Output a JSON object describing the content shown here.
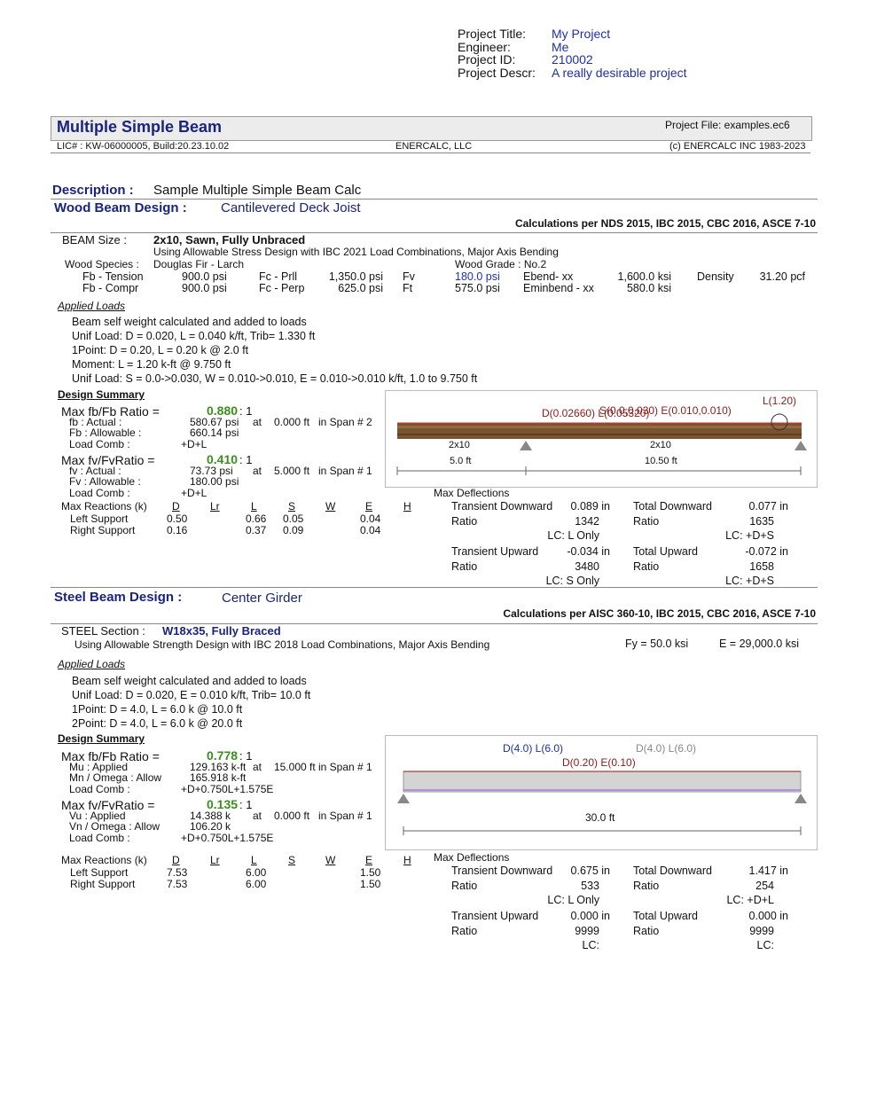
{
  "header": {
    "project_title_label": "Project Title:",
    "project_title": "My Project",
    "engineer_label": "Engineer:",
    "engineer": "Me",
    "project_id_label": "Project ID:",
    "project_id": "210002",
    "project_descr_label": "Project Descr:",
    "project_descr": "A really desirable project"
  },
  "banner": {
    "title": "Multiple Simple Beam",
    "project_file": "Project File: examples.ec6",
    "lic": "LIC# : KW-06000005, Build:20.23.10.02",
    "company": "ENERCALC, LLC",
    "copyright": "(c) ENERCALC INC 1983-2023"
  },
  "description": {
    "label": "Description :",
    "text": "Sample Multiple Simple Beam Calc"
  },
  "wood": {
    "heading_label": "Wood Beam Design :",
    "heading_name": "Cantilevered Deck Joist",
    "calcs": "Calculations per NDS 2015, IBC 2015, CBC 2016, ASCE 7-10",
    "beam_size_label": "BEAM Size :",
    "beam_size": "2x10, Sawn, Fully Unbraced",
    "method": "Using Allowable Stress Design with IBC 2021 Load Combinations, Major Axis Bending",
    "species_label": "Wood Species :",
    "species": "Douglas Fir - Larch",
    "grade": "Wood Grade : No.2",
    "props": [
      [
        "Fb - Tension",
        "900.0 psi",
        "Fc - Prll",
        "1,350.0 psi",
        "Fv",
        "180.0 psi",
        "Ebend- xx",
        "1,600.0 ksi",
        "Density",
        "31.20 pcf"
      ],
      [
        "Fb - Compr",
        "900.0 psi",
        "Fc - Perp",
        "625.0 psi",
        "Ft",
        "575.0 psi",
        "Eminbend - xx",
        "580.0 ksi"
      ]
    ],
    "applied_loads_label": "Applied Loads",
    "loads": [
      "Beam self weight calculated and added to loads",
      "Unif Load: D = 0.020, L = 0.040 k/ft, Trib= 1.330 ft",
      "1Point: D = 0.20, L = 0.20 k @ 2.0 ft",
      "Moment: L = 1.20 k-ft @ 9.750 ft",
      "Unif Load: S = 0.0->0.030, W = 0.010->0.010, E = 0.010->0.010 k/ft, 1.0 to 9.750 ft"
    ],
    "design_summary_label": "Design Summary",
    "bending": {
      "label": "Max fb/Fb Ratio =",
      "ratio": "0.880",
      "suffix": ": 1",
      "actual_label": "fb : Actual :",
      "actual": "580.67 psi",
      "at": "at",
      "location": "0.000 ft",
      "span": "in Span # 2",
      "allow_label": "Fb : Allowable :",
      "allow": "660.14 psi",
      "comb_label": "Load Comb :",
      "comb": "+D+L"
    },
    "shear": {
      "label": "Max fv/FvRatio =",
      "ratio": "0.410",
      "suffix": ": 1",
      "actual_label": "fv : Actual :",
      "actual": "73.73 psi",
      "at": "at",
      "location": "5.000 ft",
      "span": "in Span # 1",
      "allow_label": "Fv : Allowable :",
      "allow": "180.00 psi",
      "comb_label": "Load Comb :",
      "comb": "+D+L"
    },
    "reactions": {
      "label": "Max Reactions (k)",
      "headers": [
        "D",
        "Lr",
        "L",
        "S",
        "W",
        "E",
        "H"
      ],
      "rows": [
        {
          "name": "Left Support",
          "values": {
            "D": "0.50",
            "L": "0.66",
            "S": "0.05",
            "E": "0.04"
          }
        },
        {
          "name": "Right Support",
          "values": {
            "D": "0.16",
            "L": "0.37",
            "S": "0.09",
            "E": "0.04"
          }
        }
      ]
    },
    "deflections": {
      "label": "Max Deflections",
      "items": [
        {
          "label": "Transient Downward",
          "value": "0.089 in",
          "ratio_label": "Ratio",
          "ratio": "1342",
          "lc": "LC: L Only"
        },
        {
          "label": "Total Downward",
          "value": "0.077 in",
          "ratio_label": "Ratio",
          "ratio": "1635",
          "lc": "LC: +D+S"
        },
        {
          "label": "Transient Upward",
          "value": "-0.034 in",
          "ratio_label": "Ratio",
          "ratio": "3480",
          "lc": "LC: S Only"
        },
        {
          "label": "Total Upward",
          "value": "-0.072 in",
          "ratio_label": "Ratio",
          "ratio": "1658",
          "lc": "LC: +D+S"
        }
      ]
    },
    "diagram": {
      "moment": "L(1.20)",
      "dist_1": "D(0.02660) L(0.05320)",
      "dist_2": "S(0.0,0.030) E(0.010,0.010)",
      "section_1": "2x10",
      "section_2": "2x10",
      "span_1": "5.0 ft",
      "span_2": "10.50 ft"
    }
  },
  "steel": {
    "heading_label": "Steel Beam Design :",
    "heading_name": "Center Girder",
    "calcs": "Calculations per AISC 360-10, IBC 2015, CBC 2016, ASCE 7-10",
    "section_label": "STEEL Section :",
    "section": "W18x35, Fully Braced",
    "method": "Using Allowable Strength Design with IBC 2018 Load Combinations, Major Axis Bending",
    "fy": "Fy = 50.0 ksi",
    "e": "E = 29,000.0 ksi",
    "applied_loads_label": "Applied Loads",
    "loads": [
      "Beam self weight calculated and added to loads",
      "Unif Load: D = 0.020, E = 0.010 k/ft, Trib= 10.0 ft",
      "1Point: D = 4.0, L = 6.0 k @ 10.0 ft",
      "2Point: D = 4.0, L = 6.0 k @ 20.0 ft"
    ],
    "design_summary_label": "Design Summary",
    "bending": {
      "label": "Max fb/Fb Ratio =",
      "ratio": "0.778",
      "suffix": ": 1",
      "actual_label": "Mu : Applied",
      "actual": "129.163 k-ft",
      "at": "at",
      "location": "15.000 ft",
      "span": "in Span # 1",
      "allow_label": "Mn / Omega : Allow",
      "allow": "165.918 k-ft",
      "comb_label": "Load Comb :",
      "comb": "+D+0.750L+1.575E"
    },
    "shear": {
      "label": "Max fv/FvRatio =",
      "ratio": "0.135",
      "suffix": ": 1",
      "actual_label": "Vu : Applied",
      "actual": "14.388 k",
      "at": "at",
      "location": "0.000 ft",
      "span": "in Span # 1",
      "allow_label": "Vn / Omega : Allow",
      "allow": "106.20 k",
      "comb_label": "Load Comb :",
      "comb": "+D+0.750L+1.575E"
    },
    "reactions": {
      "label": "Max Reactions (k)",
      "headers": [
        "D",
        "Lr",
        "L",
        "S",
        "W",
        "E",
        "H"
      ],
      "rows": [
        {
          "name": "Left Support",
          "values": {
            "D": "7.53",
            "L": "6.00",
            "E": "1.50"
          }
        },
        {
          "name": "Right Support",
          "values": {
            "D": "7.53",
            "L": "6.00",
            "E": "1.50"
          }
        }
      ]
    },
    "deflections": {
      "label": "Max Deflections",
      "items": [
        {
          "label": "Transient Downward",
          "value": "0.675 in",
          "ratio_label": "Ratio",
          "ratio": "533",
          "lc": "LC: L Only"
        },
        {
          "label": "Total Downward",
          "value": "1.417 in",
          "ratio_label": "Ratio",
          "ratio": "254",
          "lc": "LC: +D+L"
        },
        {
          "label": "Transient Upward",
          "value": "0.000 in",
          "ratio_label": "Ratio",
          "ratio": "9999",
          "lc": "LC:"
        },
        {
          "label": "Total Upward",
          "value": "0.000 in",
          "ratio_label": "Ratio",
          "ratio": "9999",
          "lc": "LC:"
        }
      ]
    },
    "diagram": {
      "point_1": "D(4.0) L(6.0)",
      "point_2": "D(4.0) L(6.0)",
      "dist": "D(0.20) E(0.10)",
      "span": "30.0 ft"
    }
  }
}
